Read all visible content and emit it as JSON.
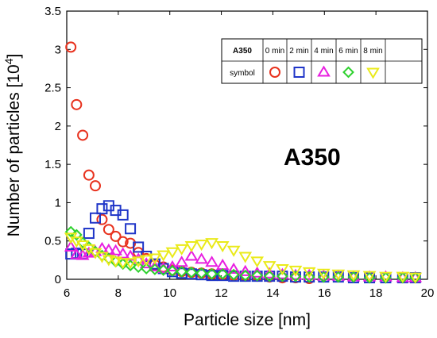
{
  "chart_data": {
    "type": "scatter",
    "title": "",
    "xlabel": "Particle size [nm]",
    "ylabel": "Number of particles [10",
    "ylabel_sup": "4",
    "ylabel_close": "]",
    "xlim": [
      6,
      20
    ],
    "ylim": [
      0,
      3.5
    ],
    "xticks": [
      "6",
      "8",
      "10",
      "12",
      "14",
      "16",
      "18",
      "20"
    ],
    "yticks": [
      "0",
      "0.5",
      "1",
      "1.5",
      "2",
      "2.5",
      "3",
      "3.5"
    ],
    "grid": false,
    "annotation": "A350",
    "annotation_color": "#c55a11",
    "legend": {
      "placement": "top-right",
      "header": "A350",
      "row_label": "symbol",
      "columns": [
        "0 min",
        "2 min",
        "4 min",
        "6 min",
        "8 min"
      ]
    },
    "series": [
      {
        "name": "0 min",
        "marker": "circle",
        "color": "#e8321e",
        "x": [
          6.16,
          6.38,
          6.62,
          6.86,
          7.11,
          7.37,
          7.63,
          7.9,
          8.18,
          8.47,
          8.78,
          9.09,
          9.42,
          9.75,
          10.1,
          10.46,
          10.84,
          11.23,
          11.63,
          12.05,
          12.48,
          12.93,
          13.39,
          13.87,
          14.37,
          14.88,
          15.41
        ],
        "y": [
          3.03,
          2.28,
          1.88,
          1.36,
          1.22,
          0.78,
          0.65,
          0.56,
          0.49,
          0.47,
          0.35,
          0.27,
          0.19,
          0.16,
          0.12,
          0.1,
          0.09,
          0.08,
          0.07,
          0.06,
          0.05,
          0.04,
          0.04,
          0.03,
          0.02,
          0.02,
          0.01
        ]
      },
      {
        "name": "2 min",
        "marker": "square",
        "color": "#1f35c8",
        "x": [
          6.16,
          6.38,
          6.62,
          6.86,
          7.11,
          7.37,
          7.63,
          7.9,
          8.18,
          8.47,
          8.78,
          9.09,
          9.42,
          9.75,
          10.1,
          10.46,
          10.84,
          11.23,
          11.63,
          12.05,
          12.48,
          12.93,
          13.39,
          13.87,
          14.37,
          14.88,
          15.41,
          15.97,
          16.54,
          17.13,
          17.75,
          18.38,
          19.04,
          19.53
        ],
        "y": [
          0.33,
          0.34,
          0.33,
          0.6,
          0.8,
          0.92,
          0.96,
          0.9,
          0.84,
          0.66,
          0.42,
          0.3,
          0.2,
          0.14,
          0.1,
          0.08,
          0.07,
          0.06,
          0.05,
          0.05,
          0.04,
          0.04,
          0.04,
          0.04,
          0.04,
          0.03,
          0.03,
          0.03,
          0.03,
          0.02,
          0.02,
          0.02,
          0.02,
          0.02
        ]
      },
      {
        "name": "4 min",
        "marker": "triangle-up",
        "color": "#e81ee0",
        "x": [
          6.16,
          6.38,
          6.62,
          6.86,
          7.11,
          7.37,
          7.63,
          7.9,
          8.18,
          8.47,
          8.78,
          9.09,
          9.42,
          9.75,
          10.1,
          10.46,
          10.84,
          11.23,
          11.63,
          12.05,
          12.48,
          12.93,
          13.39,
          13.87,
          14.37,
          14.88,
          15.41,
          15.97,
          16.54,
          17.13,
          17.75,
          18.38,
          19.04,
          19.53
        ],
        "y": [
          0.42,
          0.32,
          0.31,
          0.34,
          0.36,
          0.4,
          0.38,
          0.37,
          0.33,
          0.3,
          0.26,
          0.2,
          0.16,
          0.14,
          0.16,
          0.22,
          0.3,
          0.26,
          0.22,
          0.18,
          0.13,
          0.1,
          0.08,
          0.07,
          0.06,
          0.05,
          0.05,
          0.04,
          0.04,
          0.03,
          0.03,
          0.03,
          0.02,
          0.02
        ]
      },
      {
        "name": "6 min",
        "marker": "diamond",
        "color": "#2ed12e",
        "x": [
          6.16,
          6.38,
          6.62,
          6.86,
          7.11,
          7.37,
          7.63,
          7.9,
          8.18,
          8.47,
          8.78,
          9.09,
          9.42,
          9.75,
          10.1,
          10.46,
          10.84,
          11.23,
          11.63,
          12.05,
          12.48,
          12.93,
          13.39,
          13.87,
          14.37,
          14.88,
          15.41,
          15.97,
          16.54,
          17.13,
          17.75,
          18.38,
          19.04,
          19.53
        ],
        "y": [
          0.62,
          0.58,
          0.48,
          0.42,
          0.36,
          0.31,
          0.27,
          0.23,
          0.2,
          0.18,
          0.16,
          0.14,
          0.13,
          0.12,
          0.11,
          0.1,
          0.09,
          0.08,
          0.07,
          0.07,
          0.06,
          0.05,
          0.05,
          0.04,
          0.04,
          0.04,
          0.03,
          0.03,
          0.03,
          0.03,
          0.02,
          0.02,
          0.02,
          0.02
        ]
      },
      {
        "name": "8 min",
        "marker": "triangle-down",
        "color": "#eaea1a",
        "x": [
          6.16,
          6.38,
          6.62,
          6.86,
          7.11,
          7.37,
          7.63,
          7.9,
          8.18,
          8.47,
          8.78,
          9.09,
          9.42,
          9.75,
          10.1,
          10.46,
          10.84,
          11.23,
          11.63,
          12.05,
          12.48,
          12.93,
          13.39,
          13.87,
          14.37,
          14.88,
          15.41,
          15.97,
          16.54,
          17.13,
          17.75,
          18.38,
          19.04,
          19.53
        ],
        "y": [
          0.55,
          0.5,
          0.45,
          0.4,
          0.35,
          0.3,
          0.26,
          0.24,
          0.22,
          0.22,
          0.24,
          0.26,
          0.28,
          0.32,
          0.36,
          0.4,
          0.44,
          0.46,
          0.48,
          0.44,
          0.38,
          0.3,
          0.24,
          0.18,
          0.14,
          0.12,
          0.1,
          0.08,
          0.07,
          0.06,
          0.05,
          0.04,
          0.04,
          0.03
        ]
      }
    ]
  }
}
